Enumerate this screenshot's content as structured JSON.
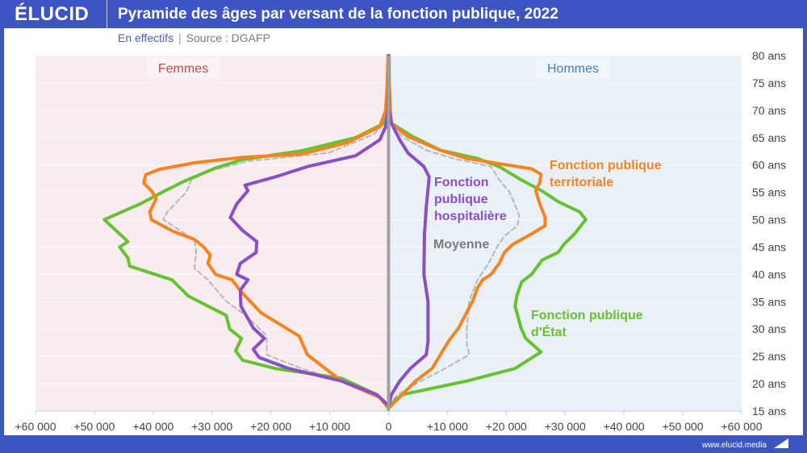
{
  "header": {
    "logo": "ÉLUCID",
    "title": "Pyramide des âges par versant de la fonction publique, 2022"
  },
  "subtitle": {
    "unit": "En effectifs",
    "separator": "|",
    "source": "Source : DGAFP"
  },
  "footer": {
    "url": "www.elucid.media"
  },
  "colors": {
    "brand": "#3c55c3",
    "women_bg": "#f8ecee",
    "men_bg": "#eaf0f8",
    "women_label": "#c0474a",
    "men_label": "#3f7fc9"
  },
  "chart_data": {
    "type": "line",
    "title": "Pyramide des âges par versant de la fonction publique, 2022",
    "orientation": "population-pyramid",
    "sides": {
      "left": "Femmes",
      "right": "Hommes"
    },
    "x_ticks": [
      "+60 000",
      "+50 000",
      "+40 000",
      "+30 000",
      "+20 000",
      "+10 000",
      "0",
      "+10 000",
      "+20 000",
      "+30 000",
      "+40 000",
      "+50 000",
      "+60 000"
    ],
    "xlim": [
      -60000,
      60000
    ],
    "y_ticks": [
      "15 ans",
      "20 ans",
      "25 ans",
      "30 ans",
      "35 ans",
      "40 ans",
      "45 ans",
      "50 ans",
      "55 ans",
      "60 ans",
      "65 ans",
      "70 ans",
      "75 ans",
      "80 ans"
    ],
    "ylim": [
      15,
      80
    ],
    "grid": "horizontal",
    "series": [
      {
        "name": "Fonction publique d'État",
        "label_lines": [
          "Fonction publique",
          "d'État"
        ],
        "color": "#66c230",
        "dash": false,
        "women": [
          [
            16,
            0
          ],
          [
            18,
            2000
          ],
          [
            21,
            8000
          ],
          [
            22.8,
            19300
          ],
          [
            24.3,
            24800
          ],
          [
            26,
            26000
          ],
          [
            28.3,
            25000
          ],
          [
            30,
            27000
          ],
          [
            32.5,
            27600
          ],
          [
            36,
            34000
          ],
          [
            39,
            36800
          ],
          [
            41.5,
            44000
          ],
          [
            43,
            44300
          ],
          [
            45,
            45700
          ],
          [
            46,
            44300
          ],
          [
            50,
            48300
          ],
          [
            53,
            42000
          ],
          [
            55,
            38500
          ],
          [
            57,
            34800
          ],
          [
            59.5,
            29300
          ],
          [
            61,
            24800
          ],
          [
            62.6,
            14800
          ],
          [
            65,
            5600
          ],
          [
            67.6,
            800
          ],
          [
            70,
            200
          ],
          [
            80,
            0
          ]
        ],
        "men": [
          [
            16,
            0
          ],
          [
            18,
            2300
          ],
          [
            20.5,
            13300
          ],
          [
            22.8,
            21500
          ],
          [
            25.8,
            25900
          ],
          [
            28.3,
            23300
          ],
          [
            30.2,
            22500
          ],
          [
            34.2,
            21500
          ],
          [
            36.1,
            21800
          ],
          [
            38.6,
            22600
          ],
          [
            40,
            24300
          ],
          [
            42.6,
            26100
          ],
          [
            44,
            28800
          ],
          [
            45.5,
            29800
          ],
          [
            47.4,
            31600
          ],
          [
            50,
            33500
          ],
          [
            51.4,
            32500
          ],
          [
            53.3,
            28800
          ],
          [
            55.3,
            26000
          ],
          [
            57.3,
            22500
          ],
          [
            59.7,
            18800
          ],
          [
            61.2,
            15100
          ],
          [
            62.7,
            8800
          ],
          [
            65.2,
            4100
          ],
          [
            67.6,
            500
          ],
          [
            70,
            200
          ],
          [
            80,
            0
          ]
        ]
      },
      {
        "name": "Fonction publique territoriale",
        "label_lines": [
          "Fonction publique",
          "territoriale"
        ],
        "color": "#f5831f",
        "dash": false,
        "women": [
          [
            15.5,
            0
          ],
          [
            17.5,
            1500
          ],
          [
            20.5,
            8000
          ],
          [
            25.3,
            13800
          ],
          [
            28.7,
            15200
          ],
          [
            33,
            21700
          ],
          [
            37,
            25200
          ],
          [
            39,
            26600
          ],
          [
            40,
            29400
          ],
          [
            42,
            30700
          ],
          [
            43.5,
            30300
          ],
          [
            45,
            31400
          ],
          [
            46.4,
            33000
          ],
          [
            47.9,
            36700
          ],
          [
            50,
            40300
          ],
          [
            51.4,
            40600
          ],
          [
            53.8,
            39500
          ],
          [
            55.3,
            40300
          ],
          [
            56.7,
            41600
          ],
          [
            58.2,
            41300
          ],
          [
            59.2,
            39000
          ],
          [
            60.4,
            33000
          ],
          [
            61.4,
            24800
          ],
          [
            62,
            14800
          ],
          [
            64.1,
            7000
          ],
          [
            67,
            1500
          ],
          [
            70,
            500
          ],
          [
            75,
            200
          ],
          [
            80,
            100
          ]
        ],
        "men": [
          [
            15.5,
            0
          ],
          [
            18,
            2300
          ],
          [
            20.5,
            4600
          ],
          [
            22.8,
            7400
          ],
          [
            25.3,
            8800
          ],
          [
            27.8,
            10200
          ],
          [
            30.2,
            11900
          ],
          [
            33.1,
            13300
          ],
          [
            35.1,
            14300
          ],
          [
            37.5,
            15100
          ],
          [
            39,
            16000
          ],
          [
            40,
            17400
          ],
          [
            42,
            18800
          ],
          [
            44,
            19700
          ],
          [
            45.5,
            21100
          ],
          [
            47.4,
            24300
          ],
          [
            48.9,
            26600
          ],
          [
            50.4,
            26600
          ],
          [
            52.9,
            25700
          ],
          [
            55.3,
            25000
          ],
          [
            56.8,
            25700
          ],
          [
            58.3,
            25900
          ],
          [
            59.3,
            24300
          ],
          [
            60,
            20200
          ],
          [
            61.2,
            13300
          ],
          [
            62.7,
            8800
          ],
          [
            65.2,
            3300
          ],
          [
            67.6,
            500
          ],
          [
            70,
            300
          ],
          [
            75,
            100
          ],
          [
            80,
            100
          ]
        ]
      },
      {
        "name": "Fonction publique hospitalière",
        "label_lines": [
          "Fonction",
          "publique",
          "hospitalière"
        ],
        "color": "#8a4fc7",
        "dash": false,
        "women": [
          [
            16,
            0
          ],
          [
            18,
            2000
          ],
          [
            20.5,
            8000
          ],
          [
            22.8,
            17000
          ],
          [
            24.8,
            22000
          ],
          [
            26.3,
            23000
          ],
          [
            28.3,
            21100
          ],
          [
            30.2,
            23000
          ],
          [
            34.2,
            25100
          ],
          [
            37.1,
            25200
          ],
          [
            39,
            23900
          ],
          [
            40,
            25800
          ],
          [
            42,
            25200
          ],
          [
            44,
            22500
          ],
          [
            46,
            22400
          ],
          [
            48,
            24800
          ],
          [
            50.4,
            26900
          ],
          [
            52.9,
            25800
          ],
          [
            55.3,
            23900
          ],
          [
            56.3,
            24400
          ],
          [
            57.8,
            19300
          ],
          [
            59.7,
            13800
          ],
          [
            61.7,
            5600
          ],
          [
            64.6,
            1500
          ],
          [
            67,
            500
          ],
          [
            70,
            100
          ],
          [
            80,
            0
          ]
        ],
        "men": [
          [
            16,
            0
          ],
          [
            18,
            500
          ],
          [
            20.5,
            1900
          ],
          [
            22.8,
            3700
          ],
          [
            25.3,
            6400
          ],
          [
            27.8,
            6700
          ],
          [
            35,
            6700
          ],
          [
            40,
            6000
          ],
          [
            47.4,
            6100
          ],
          [
            52.3,
            6400
          ],
          [
            57.8,
            6900
          ],
          [
            59.7,
            6000
          ],
          [
            62.2,
            3300
          ],
          [
            64.6,
            1900
          ],
          [
            67.6,
            500
          ],
          [
            70,
            100
          ],
          [
            80,
            0
          ]
        ]
      },
      {
        "name": "Moyenne",
        "label_lines": [
          "Moyenne"
        ],
        "color": "#b8b8b8",
        "dash": true,
        "women": [
          [
            16,
            0
          ],
          [
            18,
            2000
          ],
          [
            20.5,
            8000
          ],
          [
            22.8,
            14800
          ],
          [
            25.3,
            20700
          ],
          [
            28.7,
            20700
          ],
          [
            32.2,
            23900
          ],
          [
            35.1,
            27600
          ],
          [
            39,
            30700
          ],
          [
            41.1,
            33000
          ],
          [
            44,
            32700
          ],
          [
            46.4,
            33000
          ],
          [
            48,
            35400
          ],
          [
            50,
            38300
          ],
          [
            51.4,
            37600
          ],
          [
            55,
            34400
          ],
          [
            57.3,
            33500
          ],
          [
            58.8,
            30700
          ],
          [
            60.7,
            23900
          ],
          [
            62.2,
            10200
          ],
          [
            65.6,
            2500
          ],
          [
            68,
            500
          ],
          [
            70,
            100
          ],
          [
            80,
            0
          ]
        ],
        "men": [
          [
            16,
            0
          ],
          [
            18,
            1500
          ],
          [
            20.5,
            5500
          ],
          [
            22.8,
            9600
          ],
          [
            25.3,
            13700
          ],
          [
            27.2,
            13300
          ],
          [
            30.2,
            13300
          ],
          [
            35.1,
            13700
          ],
          [
            39,
            15100
          ],
          [
            42,
            17000
          ],
          [
            45,
            18400
          ],
          [
            47,
            19700
          ],
          [
            48.9,
            21900
          ],
          [
            50.8,
            22200
          ],
          [
            55,
            20600
          ],
          [
            57.3,
            18800
          ],
          [
            59.7,
            17400
          ],
          [
            61.2,
            11000
          ],
          [
            62.7,
            6400
          ],
          [
            65.2,
            2300
          ],
          [
            68,
            400
          ],
          [
            70,
            100
          ],
          [
            80,
            0
          ]
        ]
      }
    ]
  }
}
